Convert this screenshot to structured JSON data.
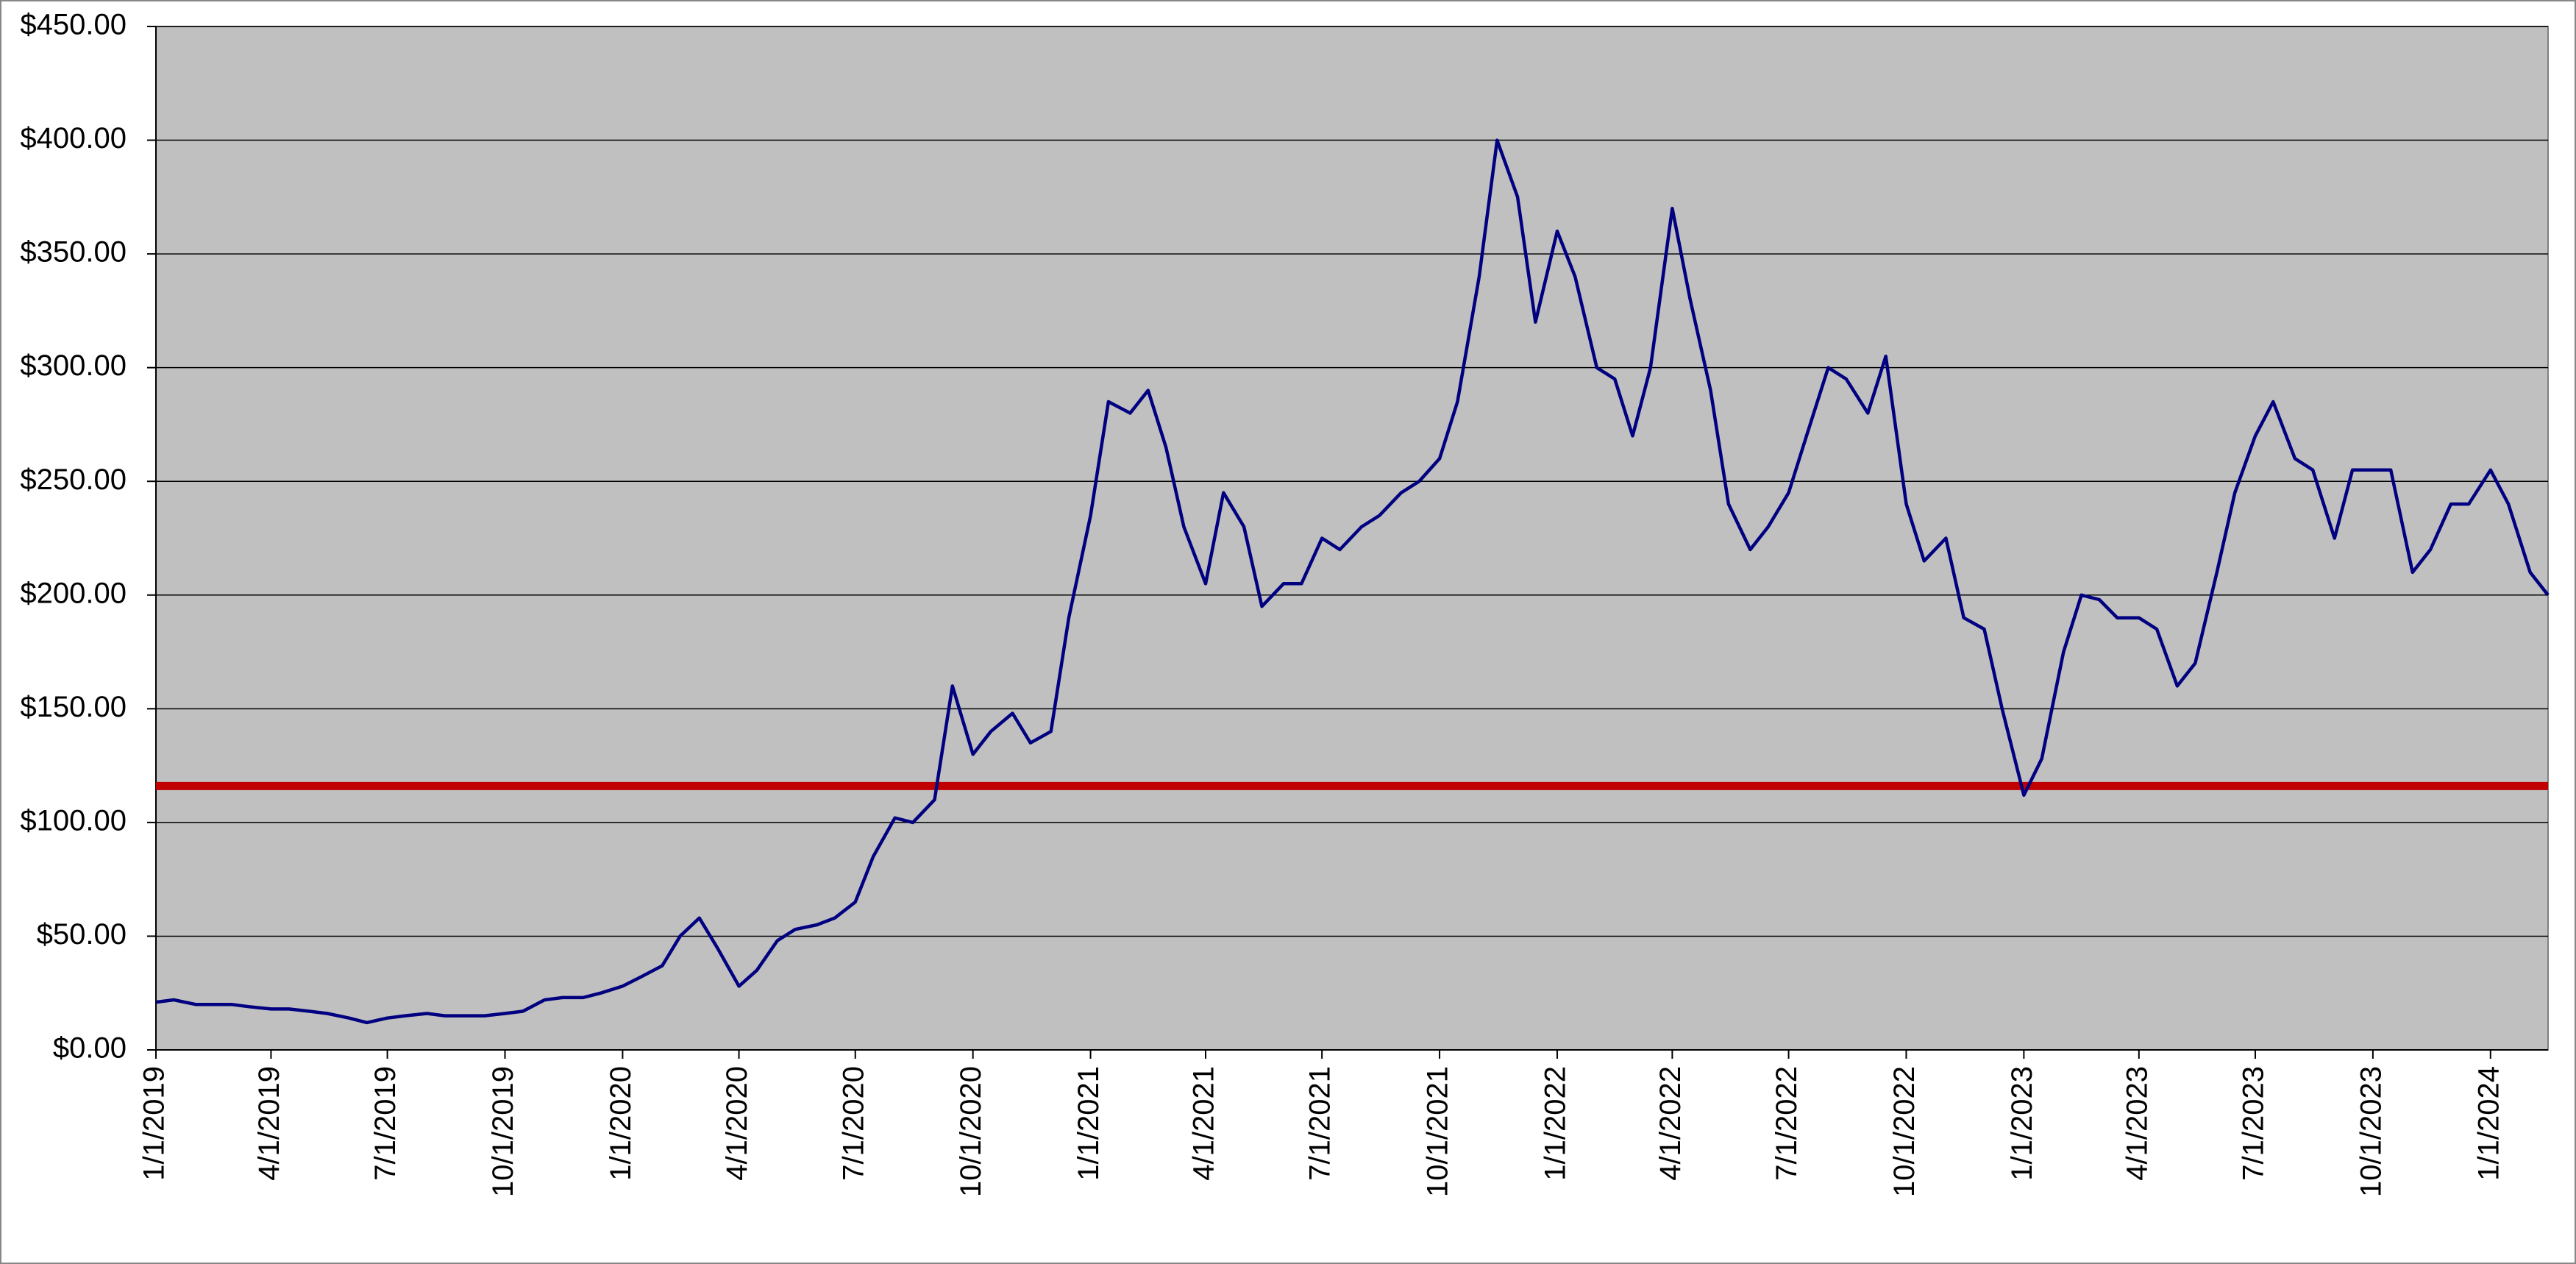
{
  "chart_data": {
    "type": "line",
    "x": [
      "1/1/2019",
      "1/15/2019",
      "2/1/2019",
      "2/15/2019",
      "3/1/2019",
      "3/15/2019",
      "4/1/2019",
      "4/15/2019",
      "5/1/2019",
      "5/15/2019",
      "6/1/2019",
      "6/15/2019",
      "7/1/2019",
      "7/15/2019",
      "8/1/2019",
      "8/15/2019",
      "9/1/2019",
      "9/15/2019",
      "10/1/2019",
      "10/15/2019",
      "11/1/2019",
      "11/15/2019",
      "12/1/2019",
      "12/15/2019",
      "1/1/2020",
      "1/15/2020",
      "2/1/2020",
      "2/15/2020",
      "3/1/2020",
      "3/15/2020",
      "4/1/2020",
      "4/15/2020",
      "5/1/2020",
      "5/15/2020",
      "6/1/2020",
      "6/15/2020",
      "7/1/2020",
      "7/15/2020",
      "8/1/2020",
      "8/15/2020",
      "9/1/2020",
      "9/15/2020",
      "10/1/2020",
      "10/15/2020",
      "11/1/2020",
      "11/15/2020",
      "12/1/2020",
      "12/15/2020",
      "1/1/2021",
      "1/15/2021",
      "2/1/2021",
      "2/15/2021",
      "3/1/2021",
      "3/15/2021",
      "4/1/2021",
      "4/15/2021",
      "5/1/2021",
      "5/15/2021",
      "6/1/2021",
      "6/15/2021",
      "7/1/2021",
      "7/15/2021",
      "8/1/2021",
      "8/15/2021",
      "9/1/2021",
      "9/15/2021",
      "10/1/2021",
      "10/15/2021",
      "11/1/2021",
      "11/15/2021",
      "12/1/2021",
      "12/15/2021",
      "1/1/2022",
      "1/15/2022",
      "2/1/2022",
      "2/15/2022",
      "3/1/2022",
      "3/15/2022",
      "4/1/2022",
      "4/15/2022",
      "5/1/2022",
      "5/15/2022",
      "6/1/2022",
      "6/15/2022",
      "7/1/2022",
      "7/15/2022",
      "8/1/2022",
      "8/15/2022",
      "9/1/2022",
      "9/15/2022",
      "10/1/2022",
      "10/15/2022",
      "11/1/2022",
      "11/15/2022",
      "12/1/2022",
      "12/15/2022",
      "1/1/2023",
      "1/15/2023",
      "2/1/2023",
      "2/15/2023",
      "3/1/2023",
      "3/15/2023",
      "4/1/2023",
      "4/15/2023",
      "5/1/2023",
      "5/15/2023",
      "6/1/2023",
      "6/15/2023",
      "7/1/2023",
      "7/15/2023",
      "8/1/2023",
      "8/15/2023",
      "9/1/2023",
      "9/15/2023",
      "10/1/2023",
      "10/15/2023",
      "11/1/2023",
      "11/15/2023",
      "12/1/2023",
      "12/15/2023",
      "1/1/2024",
      "1/15/2024",
      "2/1/2024",
      "2/15/2024"
    ],
    "series": [
      {
        "color": "#000080",
        "values": [
          21,
          22,
          20,
          20,
          20,
          19,
          18,
          18,
          17,
          16,
          14,
          12,
          14,
          15,
          16,
          15,
          15,
          15,
          16,
          17,
          22,
          23,
          23,
          25,
          28,
          32,
          37,
          50,
          58,
          45,
          28,
          35,
          48,
          53,
          55,
          58,
          65,
          85,
          102,
          100,
          110,
          160,
          130,
          140,
          148,
          135,
          140,
          190,
          235,
          285,
          280,
          290,
          265,
          230,
          205,
          245,
          230,
          195,
          205,
          205,
          225,
          220,
          230,
          235,
          245,
          250,
          260,
          285,
          340,
          400,
          375,
          320,
          360,
          340,
          300,
          295,
          270,
          300,
          370,
          330,
          290,
          240,
          220,
          230,
          245,
          270,
          300,
          295,
          280,
          305,
          240,
          215,
          225,
          190,
          185,
          150,
          112,
          128,
          175,
          200,
          198,
          190,
          190,
          185,
          160,
          170,
          210,
          245,
          270,
          285,
          260,
          255,
          225,
          255,
          255,
          255,
          210,
          220,
          240,
          240,
          255,
          240,
          210,
          200
        ]
      }
    ],
    "hline": {
      "value": 116,
      "color": "#c00000"
    },
    "xlim": [
      "1/1/2019",
      "2/15/2024"
    ],
    "xticks": [
      "1/1/2019",
      "4/1/2019",
      "7/1/2019",
      "10/1/2019",
      "1/1/2020",
      "4/1/2020",
      "7/1/2020",
      "10/1/2020",
      "1/1/2021",
      "4/1/2021",
      "7/1/2021",
      "10/1/2021",
      "1/1/2022",
      "4/1/2022",
      "7/1/2022",
      "10/1/2022",
      "1/1/2023",
      "4/1/2023",
      "7/1/2023",
      "10/1/2023",
      "1/1/2024"
    ],
    "ylim": [
      0,
      450
    ],
    "yticks": [
      {
        "value": 0,
        "label": "$0.00"
      },
      {
        "value": 50,
        "label": "$50.00"
      },
      {
        "value": 100,
        "label": "$100.00"
      },
      {
        "value": 150,
        "label": "$150.00"
      },
      {
        "value": 200,
        "label": "$200.00"
      },
      {
        "value": 250,
        "label": "$250.00"
      },
      {
        "value": 300,
        "label": "$300.00"
      },
      {
        "value": 350,
        "label": "$350.00"
      },
      {
        "value": 400,
        "label": "$400.00"
      },
      {
        "value": 450,
        "label": "$450.00"
      }
    ],
    "grid": true,
    "background": "#c0c0c0"
  }
}
